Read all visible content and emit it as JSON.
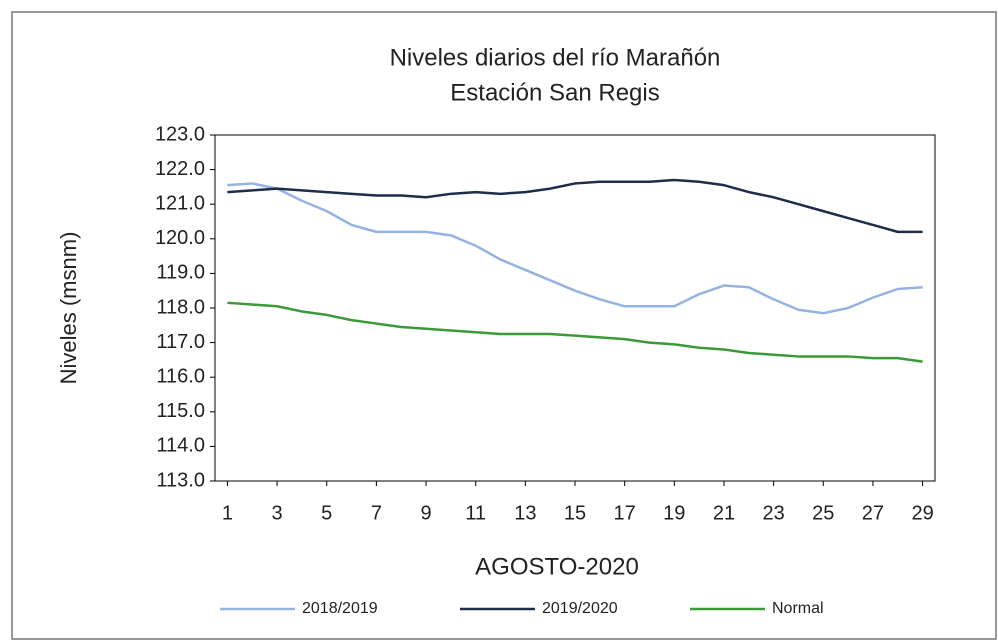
{
  "chart_data": {
    "type": "line",
    "title": "Niveles  diarios del río Marañón",
    "subtitle": "Estación San Regis",
    "y_label": "Niveles (msnm)",
    "x_label": "AGOSTO-2020",
    "categories": [
      "1",
      null,
      "3",
      null,
      "5",
      null,
      "7",
      null,
      "9",
      null,
      "11",
      null,
      "13",
      null,
      "15",
      null,
      "17",
      null,
      "19",
      null,
      "21",
      null,
      "23",
      null,
      "25",
      null,
      "27",
      null,
      "29"
    ],
    "series": [
      {
        "name": "2018/2019",
        "color": "#95b3e0",
        "values": [
          121.55,
          121.6,
          121.45,
          121.1,
          120.8,
          120.4,
          120.2,
          120.2,
          120.2,
          120.1,
          119.8,
          119.4,
          119.1,
          118.8,
          118.5,
          118.25,
          118.05,
          118.05,
          118.05,
          118.4,
          118.65,
          118.6,
          118.25,
          117.95,
          117.85,
          118.0,
          118.3,
          118.55,
          118.6
        ]
      },
      {
        "name": "2019/2020",
        "color": "#1f2d4a",
        "values": [
          121.35,
          121.4,
          121.45,
          121.4,
          121.35,
          121.3,
          121.25,
          121.25,
          121.2,
          121.3,
          121.35,
          121.3,
          121.35,
          121.45,
          121.6,
          121.65,
          121.65,
          121.65,
          121.7,
          121.65,
          121.55,
          121.35,
          121.2,
          121.0,
          120.8,
          120.6,
          120.4,
          120.2,
          120.2
        ]
      },
      {
        "name": "Normal",
        "color": "#3a9a3a",
        "values": [
          118.15,
          118.1,
          118.05,
          117.9,
          117.8,
          117.65,
          117.55,
          117.45,
          117.4,
          117.35,
          117.3,
          117.25,
          117.25,
          117.25,
          117.2,
          117.15,
          117.1,
          117.0,
          116.95,
          116.85,
          116.8,
          116.7,
          116.65,
          116.6,
          116.6,
          116.6,
          116.55,
          116.55,
          116.45
        ]
      }
    ],
    "ylim": [
      113,
      123
    ],
    "yticks": [
      {
        "value": 113,
        "label": "113.0"
      },
      {
        "value": 114,
        "label": "114.0"
      },
      {
        "value": 115,
        "label": "115.0"
      },
      {
        "value": 116,
        "label": "116.0"
      },
      {
        "value": 117,
        "label": "117.0"
      },
      {
        "value": 118,
        "label": "118.0"
      },
      {
        "value": 119,
        "label": "119.0"
      },
      {
        "value": 120,
        "label": "120.0"
      },
      {
        "value": 121,
        "label": "121.0"
      },
      {
        "value": 122,
        "label": "122.0"
      },
      {
        "value": 123,
        "label": "123.0"
      }
    ],
    "grid": false,
    "legend": "bottom"
  }
}
